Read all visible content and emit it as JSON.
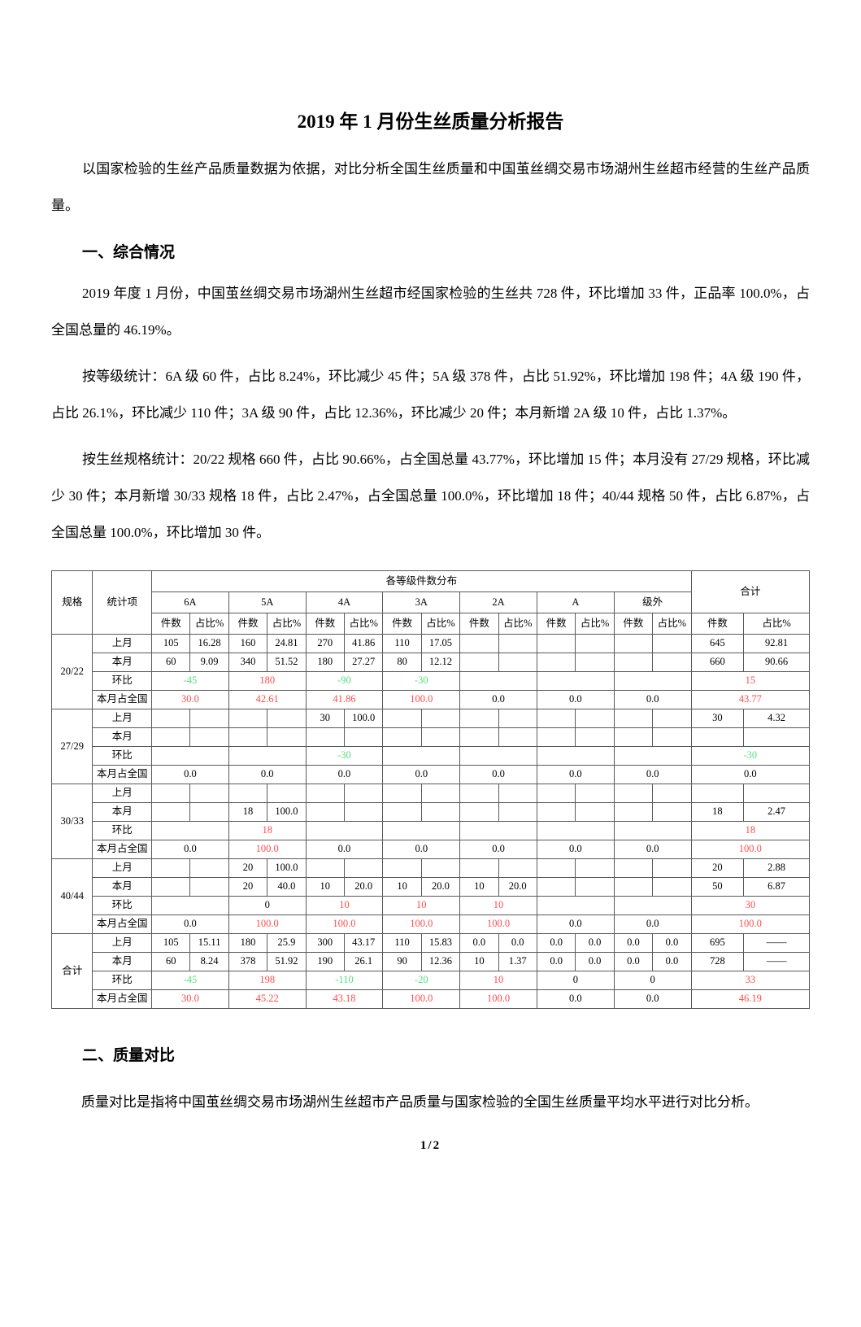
{
  "doc": {
    "title": "2019 年 1 月份生丝质量分析报告",
    "intro": "以国家检验的生丝产品质量数据为依据，对比分析全国生丝质量和中国茧丝绸交易市场湖州生丝超市经营的生丝产品质量。",
    "section1": {
      "heading": "一、综合情况",
      "p1": "2019 年度 1 月份，中国茧丝绸交易市场湖州生丝超市经国家检验的生丝共 728 件，环比增加 33 件，正品率 100.0%，占全国总量的 46.19%。",
      "p2": "按等级统计：6A 级 60 件，占比 8.24%，环比减少 45 件；5A 级 378 件，占比 51.92%，环比增加 198 件；4A 级 190 件，占比 26.1%，环比减少 110 件；3A 级 90 件，占比 12.36%，环比减少 20 件；本月新增 2A 级 10 件，占比 1.37%。",
      "p3": "按生丝规格统计：20/22 规格 660 件，占比 90.66%，占全国总量 43.77%，环比增加 15 件；本月没有 27/29 规格，环比减少 30 件；本月新增 30/33 规格 18 件，占比 2.47%，占全国总量 100.0%，环比增加 18 件；40/44 规格 50 件，占比 6.87%，占全国总量 100.0%，环比增加 30 件。"
    },
    "section2": {
      "heading": "二、质量对比",
      "p1": "质量对比是指将中国茧丝绸交易市场湖州生丝超市产品质量与国家检验的全国生丝质量平均水平进行对比分析。"
    },
    "page_number": "1/2"
  },
  "table": {
    "colors": {
      "positive": "#ff4c4c",
      "negative": "#53e07e",
      "border": "#595959"
    },
    "header": {
      "spec": "规格",
      "stat": "统计项",
      "dist": "各等级件数分布",
      "total": "合计",
      "grades": [
        "6A",
        "5A",
        "4A",
        "3A",
        "2A",
        "A",
        "级外"
      ],
      "count": "件数",
      "pct": "占比%"
    },
    "row_labels": [
      "上月",
      "本月",
      "环比",
      "本月占全国"
    ],
    "groups": [
      {
        "spec": "20/22",
        "rows": {
          "last": {
            "pairs": [
              [
                "105",
                "16.28"
              ],
              [
                "160",
                "24.81"
              ],
              [
                "270",
                "41.86"
              ],
              [
                "110",
                "17.05"
              ],
              [
                "",
                ""
              ],
              [
                "",
                ""
              ],
              [
                "",
                ""
              ]
            ],
            "total": [
              "645",
              "92.81"
            ]
          },
          "cur": {
            "pairs": [
              [
                "60",
                "9.09"
              ],
              [
                "340",
                "51.52"
              ],
              [
                "180",
                "27.27"
              ],
              [
                "80",
                "12.12"
              ],
              [
                "",
                ""
              ],
              [
                "",
                ""
              ],
              [
                "",
                ""
              ]
            ],
            "total": [
              "660",
              "90.66"
            ]
          },
          "mom": {
            "vals": [
              "-45",
              "180",
              "-90",
              "-30",
              "",
              "",
              ""
            ],
            "total": "15"
          },
          "nat": {
            "vals": [
              "30.0",
              "42.61",
              "41.86",
              "100.0",
              "0.0",
              "0.0",
              "0.0"
            ],
            "total": "43.77"
          }
        }
      },
      {
        "spec": "27/29",
        "rows": {
          "last": {
            "pairs": [
              [
                "",
                ""
              ],
              [
                "",
                ""
              ],
              [
                "30",
                "100.0"
              ],
              [
                "",
                ""
              ],
              [
                "",
                ""
              ],
              [
                "",
                ""
              ],
              [
                "",
                ""
              ]
            ],
            "total": [
              "30",
              "4.32"
            ]
          },
          "cur": {
            "pairs": [
              [
                "",
                ""
              ],
              [
                "",
                ""
              ],
              [
                "",
                ""
              ],
              [
                "",
                ""
              ],
              [
                "",
                ""
              ],
              [
                "",
                ""
              ],
              [
                "",
                ""
              ]
            ],
            "total": [
              "",
              ""
            ]
          },
          "mom": {
            "vals": [
              "",
              "",
              "-30",
              "",
              "",
              "",
              ""
            ],
            "total": "-30"
          },
          "nat": {
            "vals": [
              "0.0",
              "0.0",
              "0.0",
              "0.0",
              "0.0",
              "0.0",
              "0.0"
            ],
            "total": "0.0"
          }
        }
      },
      {
        "spec": "30/33",
        "rows": {
          "last": {
            "pairs": [
              [
                "",
                ""
              ],
              [
                "",
                ""
              ],
              [
                "",
                ""
              ],
              [
                "",
                ""
              ],
              [
                "",
                ""
              ],
              [
                "",
                ""
              ],
              [
                "",
                ""
              ]
            ],
            "total": [
              "",
              ""
            ]
          },
          "cur": {
            "pairs": [
              [
                "",
                ""
              ],
              [
                "18",
                "100.0"
              ],
              [
                "",
                ""
              ],
              [
                "",
                ""
              ],
              [
                "",
                ""
              ],
              [
                "",
                ""
              ],
              [
                "",
                ""
              ]
            ],
            "total": [
              "18",
              "2.47"
            ]
          },
          "mom": {
            "vals": [
              "",
              "18",
              "",
              "",
              "",
              "",
              ""
            ],
            "total": "18"
          },
          "nat": {
            "vals": [
              "0.0",
              "100.0",
              "0.0",
              "0.0",
              "0.0",
              "0.0",
              "0.0"
            ],
            "total": "100.0"
          }
        }
      },
      {
        "spec": "40/44",
        "rows": {
          "last": {
            "pairs": [
              [
                "",
                ""
              ],
              [
                "20",
                "100.0"
              ],
              [
                "",
                ""
              ],
              [
                "",
                ""
              ],
              [
                "",
                ""
              ],
              [
                "",
                ""
              ],
              [
                "",
                ""
              ]
            ],
            "total": [
              "20",
              "2.88"
            ]
          },
          "cur": {
            "pairs": [
              [
                "",
                ""
              ],
              [
                "20",
                "40.0"
              ],
              [
                "10",
                "20.0"
              ],
              [
                "10",
                "20.0"
              ],
              [
                "10",
                "20.0"
              ],
              [
                "",
                ""
              ],
              [
                "",
                ""
              ]
            ],
            "total": [
              "50",
              "6.87"
            ]
          },
          "mom": {
            "vals": [
              "",
              "0",
              "10",
              "10",
              "10",
              "",
              ""
            ],
            "total": "30"
          },
          "nat": {
            "vals": [
              "0.0",
              "100.0",
              "100.0",
              "100.0",
              "100.0",
              "0.0",
              "0.0"
            ],
            "total": "100.0"
          }
        }
      },
      {
        "spec": "合计",
        "rows": {
          "last": {
            "pairs": [
              [
                "105",
                "15.11"
              ],
              [
                "180",
                "25.9"
              ],
              [
                "300",
                "43.17"
              ],
              [
                "110",
                "15.83"
              ],
              [
                "0.0",
                "0.0"
              ],
              [
                "0.0",
                "0.0"
              ],
              [
                "0.0",
                "0.0"
              ]
            ],
            "total": [
              "695",
              "——"
            ]
          },
          "cur": {
            "pairs": [
              [
                "60",
                "8.24"
              ],
              [
                "378",
                "51.92"
              ],
              [
                "190",
                "26.1"
              ],
              [
                "90",
                "12.36"
              ],
              [
                "10",
                "1.37"
              ],
              [
                "0.0",
                "0.0"
              ],
              [
                "0.0",
                "0.0"
              ]
            ],
            "total": [
              "728",
              "——"
            ]
          },
          "mom": {
            "vals": [
              "-45",
              "198",
              "-110",
              "-20",
              "10",
              "0",
              "0"
            ],
            "total": "33"
          },
          "nat": {
            "vals": [
              "30.0",
              "45.22",
              "43.18",
              "100.0",
              "100.0",
              "0.0",
              "0.0"
            ],
            "total": "46.19"
          }
        }
      }
    ]
  }
}
